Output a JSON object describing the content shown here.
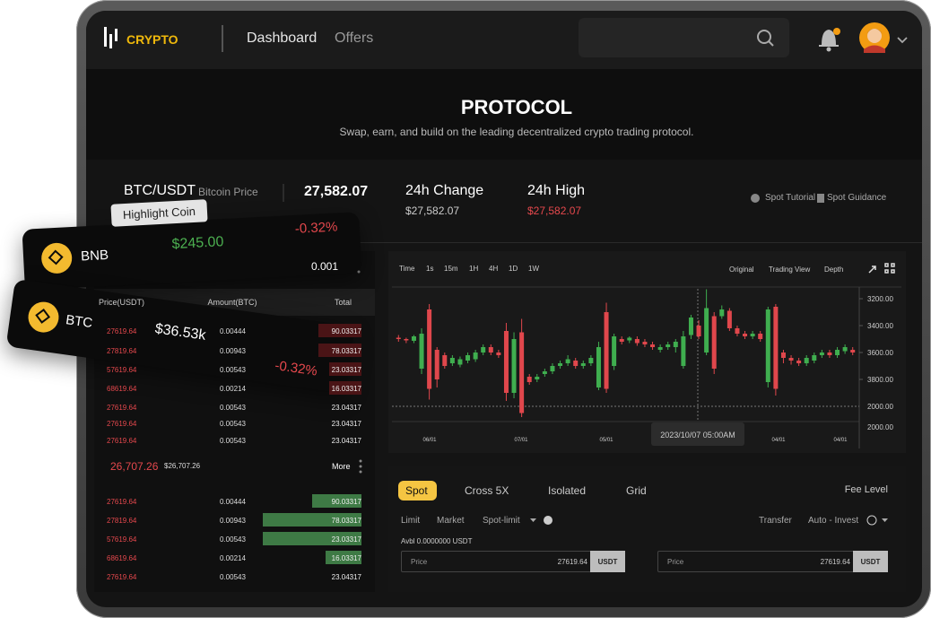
{
  "header": {
    "logo": "CRYPTO",
    "nav": [
      "Dashboard",
      "Offers"
    ]
  },
  "hero": {
    "title": "PROTOCOL",
    "subtitle": "Swap, earn, and build on the leading decentralized crypto trading protocol."
  },
  "ticker": {
    "pair": "BTC/USDT",
    "pair_label": "Bitcoin Price",
    "price": "27,582.07",
    "stats": [
      {
        "label": "24h Change",
        "value": "$27,582.07"
      },
      {
        "label": "24h High",
        "value": "$27,582.07"
      }
    ],
    "links": [
      "Spot Tutorial",
      "Spot Guidance"
    ]
  },
  "highlight": {
    "badge": "Highlight Coin",
    "coins": [
      {
        "name": "BNB",
        "price": "$245.00",
        "change": "-0.32%"
      },
      {
        "name": "BTC",
        "price": "$36.53k",
        "change": "-0.32%"
      }
    ]
  },
  "order_book": {
    "step": "0.001",
    "columns": [
      "Price(USDT)",
      "Amount(BTC)",
      "Total"
    ],
    "asks": [
      [
        "27619.64",
        "0.00444",
        "90.03317"
      ],
      [
        "27819.64",
        "0.00943",
        "78.03317"
      ],
      [
        "57619.64",
        "0.00543",
        "23.03317"
      ],
      [
        "68619.64",
        "0.00214",
        "16.03317"
      ],
      [
        "27619.64",
        "0.00543",
        "23.04317"
      ],
      [
        "27619.64",
        "0.00543",
        "23.04317"
      ],
      [
        "27619.64",
        "0.00543",
        "23.04317"
      ]
    ],
    "last_price": "26,707.26",
    "last_price_usd": "$26,707.26",
    "more": "More",
    "bids": [
      [
        "27619.64",
        "0.00444",
        "90.03317"
      ],
      [
        "27819.64",
        "0.00943",
        "78.03317"
      ],
      [
        "57619.64",
        "0.00543",
        "23.03317"
      ],
      [
        "68619.64",
        "0.00214",
        "16.03317"
      ],
      [
        "27619.64",
        "0.00543",
        "23.04317"
      ]
    ]
  },
  "chart": {
    "intervals": [
      "Time",
      "1s",
      "15m",
      "1H",
      "4H",
      "1D",
      "1W"
    ],
    "views": [
      "Original",
      "Trading View",
      "Depth"
    ],
    "yticks": [
      {
        "value": 3200,
        "label": "3200.00"
      },
      {
        "value": 3400,
        "label": "3400.00"
      },
      {
        "value": 3600,
        "label": "3600.00"
      },
      {
        "value": 3800,
        "label": "3800.00"
      }
    ],
    "extra_y_labels": [
      "2000.00",
      "2000.00"
    ],
    "x_labels": [
      "06/01",
      "07/01",
      "05/01",
      "04/01",
      "04/01"
    ],
    "tooltip": "2023/10/07 05:00AM",
    "candles": [
      [
        3490,
        3500,
        3470,
        3520
      ],
      [
        3500,
        3510,
        3490,
        3530
      ],
      [
        3513,
        3480,
        3470,
        3530
      ],
      [
        3720,
        3460,
        3420,
        3760
      ],
      [
        3280,
        3870,
        3240,
        3950
      ],
      [
        3580,
        3800,
        3560,
        3860
      ],
      [
        3620,
        3700,
        3600,
        3720
      ],
      [
        3680,
        3640,
        3620,
        3700
      ],
      [
        3690,
        3650,
        3630,
        3710
      ],
      [
        3660,
        3620,
        3600,
        3680
      ],
      [
        3650,
        3600,
        3580,
        3670
      ],
      [
        3600,
        3560,
        3540,
        3620
      ],
      [
        3560,
        3600,
        3540,
        3620
      ],
      [
        3600,
        3620,
        3580,
        3640
      ],
      [
        3440,
        3900,
        3380,
        3960
      ],
      [
        3900,
        3500,
        3450,
        3940
      ],
      [
        3450,
        4050,
        3350,
        4080
      ],
      [
        3780,
        3820,
        3760,
        3840
      ],
      [
        3800,
        3780,
        3760,
        3820
      ],
      [
        3760,
        3740,
        3720,
        3780
      ],
      [
        3740,
        3700,
        3680,
        3760
      ],
      [
        3700,
        3680,
        3660,
        3720
      ],
      [
        3680,
        3650,
        3620,
        3700
      ],
      [
        3660,
        3700,
        3640,
        3720
      ],
      [
        3700,
        3680,
        3660,
        3720
      ],
      [
        3680,
        3640,
        3620,
        3700
      ],
      [
        3860,
        3560,
        3520,
        3880
      ],
      [
        3300,
        3870,
        3230,
        3900
      ],
      [
        3700,
        3480,
        3460,
        3730
      ],
      [
        3500,
        3520,
        3480,
        3540
      ],
      [
        3510,
        3490,
        3480,
        3530
      ],
      [
        3500,
        3530,
        3480,
        3550
      ],
      [
        3520,
        3540,
        3500,
        3560
      ],
      [
        3540,
        3560,
        3520,
        3580
      ],
      [
        3580,
        3560,
        3540,
        3600
      ],
      [
        3560,
        3540,
        3520,
        3580
      ],
      [
        3560,
        3520,
        3500,
        3600
      ],
      [
        3700,
        3480,
        3440,
        3720
      ],
      [
        3470,
        3340,
        3320,
        3500
      ],
      [
        3400,
        3480,
        3360,
        3500
      ],
      [
        3600,
        3270,
        3130,
        3620
      ],
      [
        3330,
        3720,
        3300,
        3760
      ],
      [
        3330,
        3280,
        3250,
        3350
      ],
      [
        3290,
        3420,
        3270,
        3440
      ],
      [
        3420,
        3460,
        3400,
        3480
      ],
      [
        3460,
        3480,
        3440,
        3500
      ],
      [
        3480,
        3460,
        3440,
        3500
      ],
      [
        3460,
        3500,
        3440,
        3520
      ],
      [
        3820,
        3280,
        3260,
        3860
      ],
      [
        3260,
        3870,
        3240,
        3920
      ],
      [
        3600,
        3640,
        3580,
        3680
      ],
      [
        3640,
        3660,
        3620,
        3690
      ],
      [
        3660,
        3680,
        3640,
        3700
      ],
      [
        3680,
        3640,
        3620,
        3700
      ],
      [
        3660,
        3620,
        3600,
        3680
      ],
      [
        3620,
        3600,
        3580,
        3640
      ],
      [
        3600,
        3620,
        3580,
        3640
      ],
      [
        3620,
        3580,
        3560,
        3640
      ],
      [
        3590,
        3560,
        3540,
        3610
      ],
      [
        3580,
        3600,
        3560,
        3620
      ]
    ]
  },
  "trade": {
    "tabs": [
      "Spot",
      "Cross 5X",
      "Isolated",
      "Grid"
    ],
    "fee_level": "Fee Level",
    "order_types": [
      "Limit",
      "Market",
      "Spot-limit"
    ],
    "transfer": "Transfer",
    "auto_invest": "Auto - Invest",
    "available": "Avbl 0.0000000 USDT",
    "inputs": [
      {
        "label": "Price",
        "value": "27619.64",
        "unit": "USDT"
      },
      {
        "label": "Price",
        "value": "27619.64",
        "unit": "USDT"
      }
    ]
  }
}
